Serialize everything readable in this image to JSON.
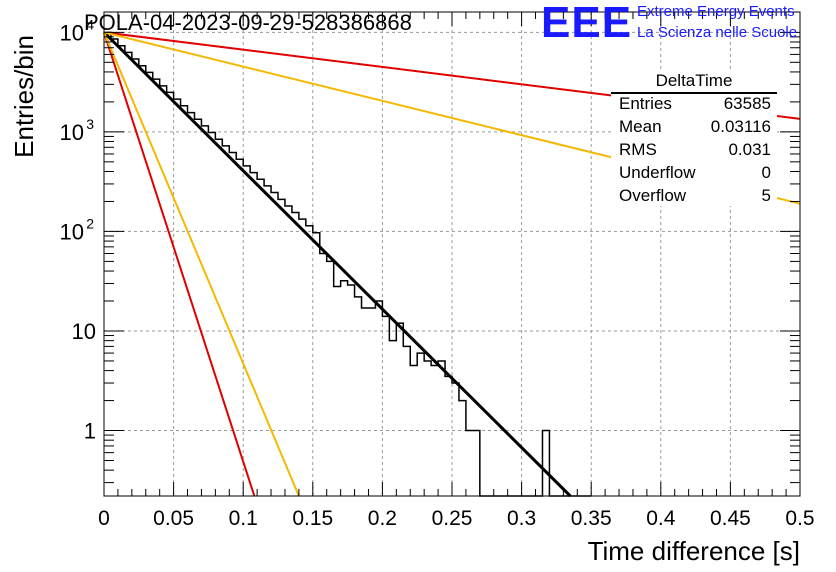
{
  "title": "POLA-04-2023-09-29-528386868",
  "logo": {
    "text": "EEE",
    "line1": "Extreme Energy Events",
    "line2": "La Scienza nelle Scuole",
    "color": "#1a1aff"
  },
  "stats_box": {
    "title": "DeltaTime",
    "rows": [
      {
        "label": "Entries",
        "value": "63585"
      },
      {
        "label": "Mean",
        "value": "0.03116"
      },
      {
        "label": "RMS",
        "value": "0.031"
      },
      {
        "label": "Underflow",
        "value": "0"
      },
      {
        "label": "Overflow",
        "value": "5"
      }
    ]
  },
  "chart_data": {
    "type": "line",
    "title": "POLA-04-2023-09-29-528386868",
    "xlabel": "Time difference [s]",
    "ylabel": "Entries/bin",
    "xlim": [
      0,
      0.5
    ],
    "ylim": [
      0.22,
      16000
    ],
    "yscale": "log",
    "grid": true,
    "x_ticks": [
      "0",
      "0.05",
      "0.1",
      "0.15",
      "0.2",
      "0.25",
      "0.3",
      "0.35",
      "0.4",
      "0.45",
      "0.5"
    ],
    "y_ticks": [
      {
        "value": 1,
        "label": "1"
      },
      {
        "value": 10,
        "label": "10"
      },
      {
        "value": 100,
        "label": "10",
        "exp": "2"
      },
      {
        "value": 1000,
        "label": "10",
        "exp": "3"
      },
      {
        "value": 10000,
        "label": "10",
        "exp": "4"
      }
    ],
    "histogram": {
      "bin_width": 0.005,
      "counts": [
        10000,
        8570,
        7340,
        6290,
        5390,
        4620,
        3960,
        3390,
        2900,
        2490,
        2130,
        1830,
        1560,
        1340,
        1150,
        985,
        844,
        723,
        620,
        531,
        455,
        390,
        334,
        287,
        246,
        210,
        180,
        155,
        133,
        114,
        97,
        60,
        50,
        28,
        32,
        29,
        22,
        17,
        17,
        20,
        14,
        8,
        12,
        7,
        4.5,
        6,
        5,
        4.5,
        5,
        3.5,
        3,
        2,
        1,
        1,
        0.2,
        0.2,
        0.2,
        0.2,
        0.2,
        0.2,
        0.2,
        0.2,
        0.2,
        1,
        0.2,
        0.2,
        0.2,
        0.2,
        0.2,
        0.2
      ]
    },
    "series": [
      {
        "color": "#000000",
        "x": [
          0,
          0.335
        ],
        "y": [
          10000,
          0.22
        ]
      },
      {
        "color": "#e00000",
        "x": [
          0,
          0.5
        ],
        "y": [
          10000,
          1350
        ]
      },
      {
        "color": "#f5b800",
        "x": [
          0,
          0.5
        ],
        "y": [
          10000,
          190
        ]
      },
      {
        "color": "#e00000",
        "x": [
          0,
          0.108
        ],
        "y": [
          10000,
          0.22
        ]
      },
      {
        "color": "#f5b800",
        "x": [
          0,
          0.14
        ],
        "y": [
          10000,
          0.22
        ]
      }
    ]
  }
}
